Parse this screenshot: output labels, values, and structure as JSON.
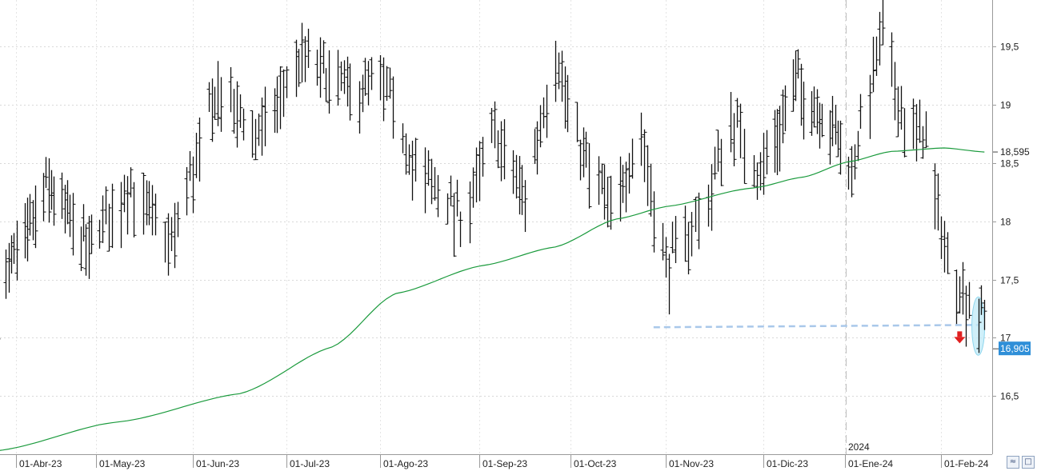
{
  "chart_data": {
    "type": "ohlc",
    "y_ticks": [
      "19,5",
      "19",
      "18,5",
      "18",
      "17,5",
      "17",
      "16,5"
    ],
    "x_ticks": [
      "01-Abr-23",
      "01-May-23",
      "01-Jun-23",
      "01-Jul-23",
      "01-Ago-23",
      "01-Sep-23",
      "01-Oct-23",
      "01-Nov-23",
      "01-Dic-23",
      "01-Ene-24",
      "01-Feb-24"
    ],
    "year_marker": "2024",
    "ylim": [
      16.0,
      19.9
    ],
    "grid": true,
    "price_labels": {
      "moving_average": "18,595",
      "last_price": "16,905"
    },
    "moving_average_anchors": [
      {
        "date": "2023-03-24",
        "value": 16.03
      },
      {
        "date": "2023-05-08",
        "value": 16.28
      },
      {
        "date": "2023-06-15",
        "value": 16.52
      },
      {
        "date": "2023-07-15",
        "value": 16.92
      },
      {
        "date": "2023-08-05",
        "value": 17.38
      },
      {
        "date": "2023-09-01",
        "value": 17.62
      },
      {
        "date": "2023-09-25",
        "value": 17.78
      },
      {
        "date": "2023-10-15",
        "value": 18.02
      },
      {
        "date": "2023-11-01",
        "value": 18.13
      },
      {
        "date": "2023-11-25",
        "value": 18.28
      },
      {
        "date": "2023-12-15",
        "value": 18.38
      },
      {
        "date": "2024-01-01",
        "value": 18.51
      },
      {
        "date": "2024-01-15",
        "value": 18.6
      },
      {
        "date": "2024-02-01",
        "value": 18.63
      },
      {
        "date": "2024-02-14",
        "value": 18.595
      }
    ],
    "support_line": {
      "from": "2023-10-27",
      "to": "2024-02-12",
      "value": 17.09
    },
    "signal": {
      "type": "down-arrow",
      "date": "2024-02-06",
      "value": 17.0
    },
    "highlight": {
      "date": "2024-02-12",
      "low": 16.85,
      "high": 17.35
    },
    "anchor_highs": [
      {
        "date": "2023-03-24",
        "value": 17.55
      },
      {
        "date": "2023-04-12",
        "value": 18.5
      },
      {
        "date": "2023-04-27",
        "value": 17.95
      },
      {
        "date": "2023-05-10",
        "value": 18.5
      },
      {
        "date": "2023-05-24",
        "value": 18.0
      },
      {
        "date": "2023-06-08",
        "value": 19.35
      },
      {
        "date": "2023-06-20",
        "value": 18.9
      },
      {
        "date": "2023-07-05",
        "value": 19.6
      },
      {
        "date": "2023-07-20",
        "value": 19.3
      },
      {
        "date": "2023-08-01",
        "value": 19.35
      },
      {
        "date": "2023-08-10",
        "value": 18.7
      },
      {
        "date": "2023-08-25",
        "value": 18.2
      },
      {
        "date": "2023-09-05",
        "value": 18.95
      },
      {
        "date": "2023-09-15",
        "value": 18.4
      },
      {
        "date": "2023-09-25",
        "value": 19.65
      },
      {
        "date": "2023-10-03",
        "value": 18.8
      },
      {
        "date": "2023-10-13",
        "value": 18.3
      },
      {
        "date": "2023-10-23",
        "value": 18.95
      },
      {
        "date": "2023-10-31",
        "value": 17.8
      },
      {
        "date": "2023-11-12",
        "value": 18.3
      },
      {
        "date": "2023-11-20",
        "value": 19.1
      },
      {
        "date": "2023-11-28",
        "value": 18.6
      },
      {
        "date": "2023-12-12",
        "value": 19.4
      },
      {
        "date": "2023-12-27",
        "value": 18.95
      },
      {
        "date": "2024-01-02",
        "value": 18.6
      },
      {
        "date": "2024-01-12",
        "value": 19.85
      },
      {
        "date": "2024-01-19",
        "value": 19.05
      },
      {
        "date": "2024-01-26",
        "value": 18.9
      },
      {
        "date": "2024-02-02",
        "value": 17.85
      },
      {
        "date": "2024-02-06",
        "value": 17.65
      },
      {
        "date": "2024-02-14",
        "value": 17.3
      }
    ],
    "bar_spread": 0.55,
    "series": [
      {
        "key": "moving_average",
        "color": "#1a9a3c"
      }
    ]
  }
}
